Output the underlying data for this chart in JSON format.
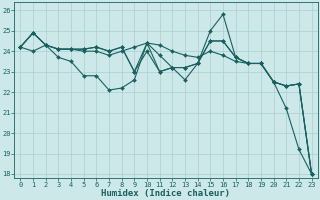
{
  "xlabel": "Humidex (Indice chaleur)",
  "ylabel": "",
  "xlim": [
    -0.5,
    23.5
  ],
  "ylim": [
    17.8,
    26.4
  ],
  "yticks": [
    18,
    19,
    20,
    21,
    22,
    23,
    24,
    25,
    26
  ],
  "xticks": [
    0,
    1,
    2,
    3,
    4,
    5,
    6,
    7,
    8,
    9,
    10,
    11,
    12,
    13,
    14,
    15,
    16,
    17,
    18,
    19,
    20,
    21,
    22,
    23
  ],
  "background_color": "#cce8e8",
  "grid_color": "#aacfcf",
  "line_color": "#1a6060",
  "lines": [
    [
      24.2,
      24.9,
      24.3,
      23.7,
      23.5,
      22.8,
      22.8,
      22.1,
      22.2,
      22.6,
      24.4,
      23.8,
      23.2,
      22.6,
      23.4,
      25.0,
      25.8,
      23.7,
      23.4,
      23.4,
      22.5,
      21.2,
      19.2,
      18.0
    ],
    [
      24.2,
      24.9,
      24.3,
      24.1,
      24.1,
      24.0,
      24.0,
      23.8,
      24.0,
      24.2,
      24.4,
      24.3,
      24.0,
      23.8,
      23.7,
      24.0,
      23.8,
      23.5,
      23.4,
      23.4,
      22.5,
      22.3,
      22.4,
      18.0
    ],
    [
      24.2,
      24.9,
      24.3,
      24.1,
      24.1,
      24.1,
      24.2,
      24.0,
      24.2,
      23.0,
      24.4,
      23.0,
      23.2,
      23.2,
      23.4,
      24.5,
      24.5,
      23.7,
      23.4,
      23.4,
      22.5,
      22.3,
      22.4,
      18.0
    ],
    [
      24.2,
      24.0,
      24.3,
      24.1,
      24.1,
      24.1,
      24.2,
      24.0,
      24.2,
      23.0,
      24.0,
      23.0,
      23.2,
      23.2,
      23.4,
      24.5,
      24.5,
      23.7,
      23.4,
      23.4,
      22.5,
      22.3,
      22.4,
      18.0
    ]
  ],
  "marker": "D",
  "markersize": 2.0,
  "linewidth": 0.8,
  "font_color": "#1a6060",
  "tick_fontsize": 5,
  "label_fontsize": 6.5
}
